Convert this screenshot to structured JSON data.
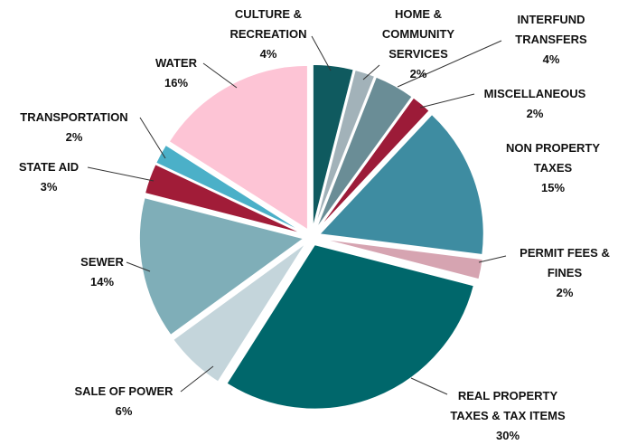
{
  "chart_data": {
    "type": "pie",
    "categories": [
      "CULTURE & RECREATION",
      "HOME & COMMUNITY SERVICES",
      "INTERFUND TRANSFERS",
      "MISCELLANEOUS",
      "NON PROPERTY TAXES",
      "PERMIT FEES & FINES",
      "REAL PROPERTY TAXES & TAX ITEMS",
      "SALE OF POWER",
      "SEWER",
      "STATE AID",
      "TRANSPORTATION",
      "WATER"
    ],
    "values": [
      4,
      2,
      4,
      2,
      15,
      2,
      30,
      6,
      14,
      3,
      2,
      16
    ],
    "value_labels": [
      "4%",
      "2%",
      "4%",
      "2%",
      "15%",
      "2%",
      "30%",
      "6%",
      "14%",
      "3%",
      "2%",
      "16%"
    ],
    "colors": [
      "#0f5a5f",
      "#a2b2b9",
      "#6a8d96",
      "#9c1b38",
      "#3e8ca1",
      "#d6a4b1",
      "#00676b",
      "#c4d5db",
      "#7faeb8",
      "#a11c38",
      "#4bb0c8",
      "#fdc4d5"
    ]
  }
}
